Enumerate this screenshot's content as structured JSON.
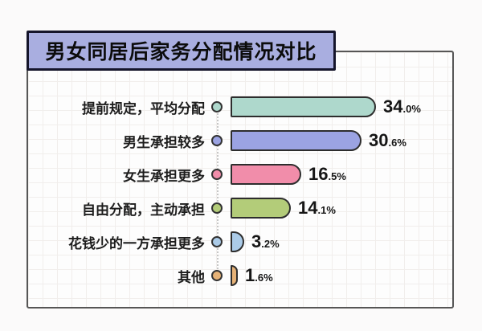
{
  "title": "男女同居后家务分配情况对比",
  "chart_data": {
    "type": "bar",
    "orientation": "horizontal",
    "title": "男女同居后家务分配情况对比",
    "categories": [
      "提前规定，平均分配",
      "男生承担较多",
      "女生承担更多",
      "自由分配，主动承担",
      "花钱少的一方承担更多",
      "其他"
    ],
    "values": [
      34.0,
      30.6,
      16.5,
      14.1,
      3.2,
      1.6
    ],
    "value_labels": [
      "34.0%",
      "30.6%",
      "16.5%",
      "14.1%",
      "3.2%",
      "1.6%"
    ],
    "value_unit": "%",
    "bar_colors": [
      "#aed8cc",
      "#9ba3e2",
      "#f18daa",
      "#b3cc79",
      "#abcbe8",
      "#e6b277"
    ],
    "xlim": [
      0,
      36
    ],
    "grid": true,
    "legend": false
  },
  "colors": {
    "page_bg": "#fbfafa",
    "chart_bg": "#fdfdfd",
    "grid_line": "#f1eeec",
    "frame_border": "#565656",
    "title_box_bg": "#a9aee0",
    "title_box_border": "#15152b",
    "bar_border": "#2d2d2d",
    "dotted_line": "#c6c6c6",
    "text": "#1d1d1d"
  }
}
